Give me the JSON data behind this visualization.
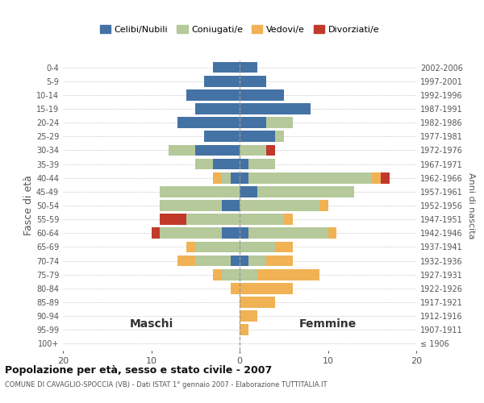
{
  "age_groups": [
    "100+",
    "95-99",
    "90-94",
    "85-89",
    "80-84",
    "75-79",
    "70-74",
    "65-69",
    "60-64",
    "55-59",
    "50-54",
    "45-49",
    "40-44",
    "35-39",
    "30-34",
    "25-29",
    "20-24",
    "15-19",
    "10-14",
    "5-9",
    "0-4"
  ],
  "birth_years": [
    "≤ 1906",
    "1907-1911",
    "1912-1916",
    "1917-1921",
    "1922-1926",
    "1927-1931",
    "1932-1936",
    "1937-1941",
    "1942-1946",
    "1947-1951",
    "1952-1956",
    "1957-1961",
    "1962-1966",
    "1967-1971",
    "1972-1976",
    "1977-1981",
    "1982-1986",
    "1987-1991",
    "1992-1996",
    "1997-2001",
    "2002-2006"
  ],
  "maschi": {
    "celibi": [
      0,
      0,
      0,
      0,
      0,
      0,
      1,
      0,
      2,
      0,
      2,
      0,
      1,
      3,
      5,
      4,
      7,
      5,
      6,
      4,
      3
    ],
    "coniugati": [
      0,
      0,
      0,
      0,
      0,
      2,
      4,
      5,
      7,
      6,
      7,
      9,
      1,
      2,
      3,
      0,
      0,
      0,
      0,
      0,
      0
    ],
    "vedovi": [
      0,
      0,
      0,
      0,
      1,
      1,
      2,
      1,
      0,
      0,
      0,
      0,
      1,
      0,
      0,
      0,
      0,
      0,
      0,
      0,
      0
    ],
    "divorziati": [
      0,
      0,
      0,
      0,
      0,
      0,
      0,
      0,
      1,
      3,
      0,
      0,
      0,
      0,
      0,
      0,
      0,
      0,
      0,
      0,
      0
    ]
  },
  "femmine": {
    "nubili": [
      0,
      0,
      0,
      0,
      0,
      0,
      1,
      0,
      1,
      0,
      0,
      2,
      1,
      1,
      0,
      4,
      3,
      8,
      5,
      3,
      2
    ],
    "coniugate": [
      0,
      0,
      0,
      0,
      0,
      2,
      2,
      4,
      9,
      5,
      9,
      11,
      14,
      3,
      3,
      1,
      3,
      0,
      0,
      0,
      0
    ],
    "vedove": [
      0,
      1,
      2,
      4,
      6,
      7,
      3,
      2,
      1,
      1,
      1,
      0,
      1,
      0,
      0,
      0,
      0,
      0,
      0,
      0,
      0
    ],
    "divorziate": [
      0,
      0,
      0,
      0,
      0,
      0,
      0,
      0,
      0,
      0,
      0,
      0,
      1,
      0,
      1,
      0,
      0,
      0,
      0,
      0,
      0
    ]
  },
  "colors": {
    "celibi_nubili": "#4472a4",
    "coniugati": "#b5c99a",
    "vedovi": "#f0b254",
    "divorziati": "#c0392b"
  },
  "title": "Popolazione per età, sesso e stato civile - 2007",
  "subtitle": "COMUNE DI CAVAGLIO-SPOCCIA (VB) - Dati ISTAT 1° gennaio 2007 - Elaborazione TUTTITALIA.IT",
  "ylabel_left": "Fasce di età",
  "ylabel_right": "Anni di nascita",
  "xlabel_maschi": "Maschi",
  "xlabel_femmine": "Femmine",
  "xlim": 20,
  "legend_labels": [
    "Celibi/Nubili",
    "Coniugati/e",
    "Vedovi/e",
    "Divorziati/e"
  ],
  "background_color": "#ffffff",
  "grid_color": "#cccccc"
}
